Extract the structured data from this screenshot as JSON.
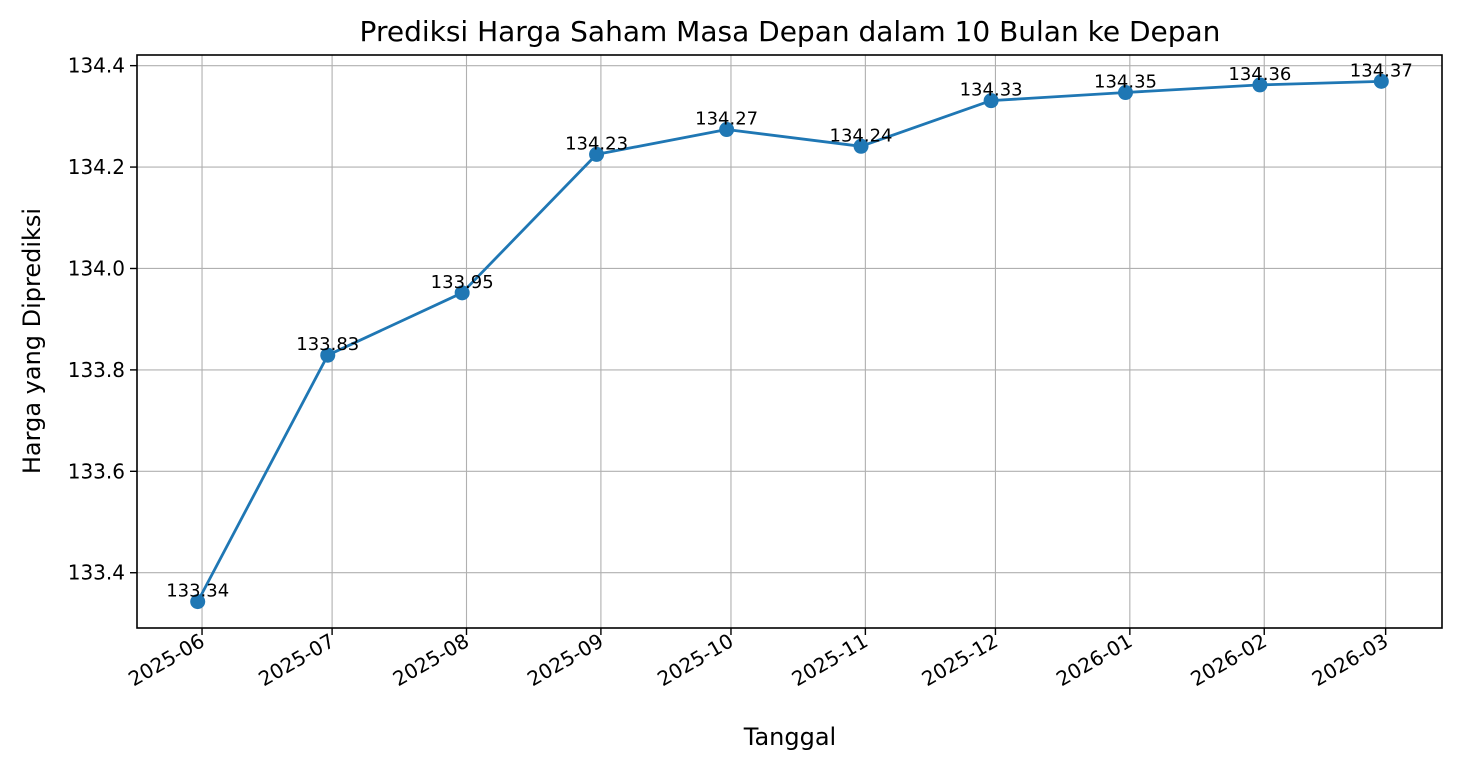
{
  "chart_data": {
    "type": "line",
    "title": "Prediksi Harga Saham Masa Depan dalam 10 Bulan ke Depan",
    "xlabel": "Tanggal",
    "ylabel": "Harga yang Diprediksi",
    "x": [
      "2025-05-31",
      "2025-06-30",
      "2025-07-31",
      "2025-08-31",
      "2025-09-30",
      "2025-10-31",
      "2025-11-30",
      "2025-12-31",
      "2026-01-31",
      "2026-02-28"
    ],
    "x_tick_labels": [
      "2025-06",
      "2025-07",
      "2025-08",
      "2025-09",
      "2025-10",
      "2025-11",
      "2025-12",
      "2026-01",
      "2026-02",
      "2026-03"
    ],
    "x_ticks": [
      "2025-06-01",
      "2025-07-01",
      "2025-08-01",
      "2025-09-01",
      "2025-10-01",
      "2025-11-01",
      "2025-12-01",
      "2026-01-01",
      "2026-02-01",
      "2026-03-01"
    ],
    "series": [
      {
        "values": [
          133.343,
          133.829,
          133.952,
          134.225,
          134.274,
          134.241,
          134.331,
          134.347,
          134.362,
          134.369
        ],
        "labels": [
          "133.34",
          "133.83",
          "133.95",
          "134.23",
          "134.27",
          "134.24",
          "134.33",
          "134.35",
          "134.36",
          "134.37"
        ],
        "color": "#1f77b4",
        "marker": "circle"
      }
    ],
    "y_ticks": [
      "133.4",
      "133.6",
      "133.8",
      "134.0",
      "134.2",
      "134.4"
    ],
    "ylim": [
      133.291,
      134.421
    ],
    "xlim": [
      "2025-05-17",
      "2026-03-14"
    ],
    "grid": true,
    "legend": "none",
    "colors": {
      "line": "#1f77b4",
      "grid": "#b0b0b0",
      "axes": "#000000"
    }
  }
}
